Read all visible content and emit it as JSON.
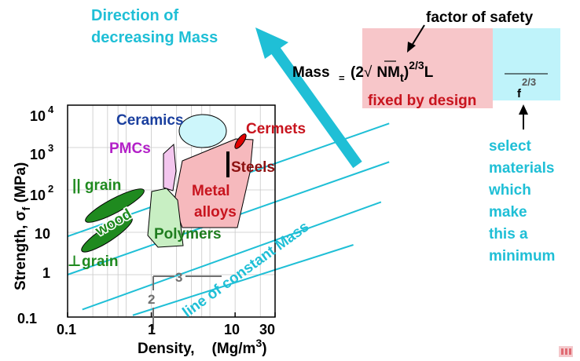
{
  "colors": {
    "cyan": "#1fbfd6",
    "ceramics": "#1a3f9e",
    "pmcs": "#b320c8",
    "metal": "#c8141e",
    "steels": "#8c1010",
    "wood": "#1f8a1f",
    "polymers": "#1f7d1f",
    "red_box": "#f7c6c9",
    "cyan_box": "#bff3fa",
    "grid": "#c8c8c8",
    "guide": "#707070"
  },
  "header": {
    "direction_line1": "Direction of",
    "direction_line2": "decreasing Mass"
  },
  "formula": {
    "mass_word": "Mass",
    "equals": "=",
    "left_paren": "(2",
    "sqrt_symbol": "√",
    "n_m_t": "NM",
    "sub_t": "t",
    "close_paren": ")",
    "exponent": "2/3",
    "length_symbol": "L",
    "denominator_exp": "2/3",
    "denominator_f": "f",
    "factor_of_safety": "factor of safety",
    "fixed_by_design": "fixed by design"
  },
  "side_note": {
    "lines": [
      "select",
      "materials",
      "which",
      "make",
      "this a",
      "minimum"
    ]
  },
  "chart_data": {
    "type": "scatter",
    "title": "",
    "xlabel_main": "Density,",
    "xlabel_units": "(Mg/m",
    "xlabel_units_exp": "3",
    "xlabel_units_close": ")",
    "ylabel_main": "Strength, σ",
    "ylabel_sub": "f",
    "ylabel_units": " (MPa)",
    "x_scale": "log",
    "y_scale": "log",
    "xlim": [
      0.1,
      30
    ],
    "ylim": [
      0.1,
      10000
    ],
    "grid": true,
    "x_ticks": [
      {
        "value": 0.1,
        "label": "0.1"
      },
      {
        "value": 1,
        "label": "1"
      },
      {
        "value": 10,
        "label": "10"
      },
      {
        "value": 30,
        "label": "30"
      }
    ],
    "y_ticks": [
      {
        "value": 0.1,
        "label": "0.1"
      },
      {
        "value": 1,
        "label": "1"
      },
      {
        "value": 10,
        "label": "10"
      },
      {
        "value": 100,
        "label": "10",
        "exp": "2"
      },
      {
        "value": 1000,
        "label": "10",
        "exp": "3"
      },
      {
        "value": 10000,
        "label": "10",
        "exp": "4"
      }
    ],
    "slope_triangle": {
      "rise_label": "2",
      "run_label": "3"
    },
    "line_label": "line of constant Mass",
    "material_labels": {
      "ceramics": "Ceramics",
      "pmcs": "PMCs",
      "cermets": "Cermets",
      "steels": "Steels",
      "metal_alloys_1": "Metal",
      "metal_alloys_2": "alloys",
      "polymers": "Polymers",
      "wood": "wood",
      "parallel_grain": "|| grain",
      "perp_grain": "grain",
      "perp_symbol": "⊥"
    },
    "regions": [
      {
        "name": "Ceramics",
        "x_range": [
          2.5,
          8
        ],
        "y_range": [
          1200,
          6000
        ]
      },
      {
        "name": "PMCs",
        "x_range": [
          1.4,
          2.2
        ],
        "y_range": [
          100,
          1200
        ]
      },
      {
        "name": "Cermets",
        "x_range": [
          11,
          14
        ],
        "y_range": [
          900,
          3000
        ]
      },
      {
        "name": "Steels",
        "x_range": [
          7.8,
          7.9
        ],
        "y_range": [
          200,
          2000
        ]
      },
      {
        "name": "Metal alloys",
        "x_range": [
          2,
          20
        ],
        "y_range": [
          12,
          3000
        ]
      },
      {
        "name": "Polymers",
        "x_range": [
          0.9,
          2.2
        ],
        "y_range": [
          6,
          120
        ]
      },
      {
        "name": "wood || grain",
        "x_range": [
          0.2,
          1.0
        ],
        "y_range": [
          20,
          180
        ]
      },
      {
        "name": "wood ⊥ grain",
        "x_range": [
          0.2,
          1.0
        ],
        "y_range": [
          2,
          25
        ]
      }
    ],
    "constant_mass_lines": [
      {
        "x": [
          0.1,
          30
        ],
        "y": [
          8,
          420
        ]
      },
      {
        "x": [
          0.1,
          30
        ],
        "y": [
          1,
          52
        ]
      },
      {
        "x": [
          0.15,
          30
        ],
        "y": [
          0.15,
          6.5
        ]
      },
      {
        "x": [
          0.6,
          30
        ],
        "y": [
          0.11,
          1.3
        ]
      }
    ]
  }
}
